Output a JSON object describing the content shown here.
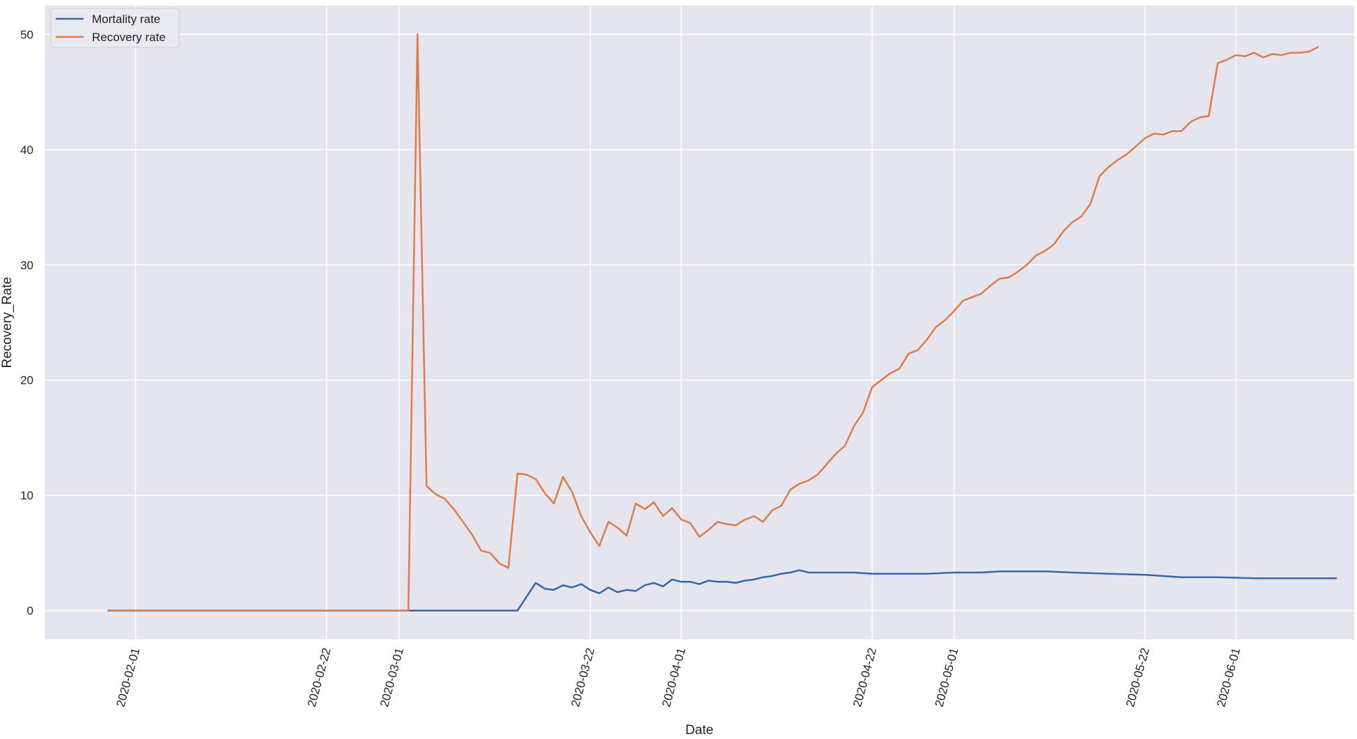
{
  "chart_data": {
    "type": "line",
    "title": "",
    "xlabel": "Date",
    "ylabel": "Recovery_Rate",
    "x_range": [
      "2020-01-22",
      "2020-06-14"
    ],
    "ylim": [
      -2.5,
      52.5
    ],
    "x_ticks": [
      "2020-02-01",
      "2020-02-22",
      "2020-03-01",
      "2020-03-22",
      "2020-04-01",
      "2020-04-22",
      "2020-05-01",
      "2020-05-22",
      "2020-06-01"
    ],
    "y_ticks": [
      0,
      10,
      20,
      30,
      40,
      50
    ],
    "grid": true,
    "legend_position": "top-left",
    "background": "#e5e5ef",
    "series": [
      {
        "name": "Mortality rate",
        "color": "#3467a8",
        "points": [
          [
            "2020-01-29",
            0
          ],
          [
            "2020-02-05",
            0
          ],
          [
            "2020-02-12",
            0
          ],
          [
            "2020-02-19",
            0
          ],
          [
            "2020-02-26",
            0
          ],
          [
            "2020-03-02",
            0
          ],
          [
            "2020-03-05",
            0
          ],
          [
            "2020-03-08",
            0
          ],
          [
            "2020-03-11",
            0
          ],
          [
            "2020-03-14",
            0
          ],
          [
            "2020-03-15",
            1.2
          ],
          [
            "2020-03-16",
            2.4
          ],
          [
            "2020-03-17",
            1.9
          ],
          [
            "2020-03-18",
            1.8
          ],
          [
            "2020-03-19",
            2.2
          ],
          [
            "2020-03-20",
            2.0
          ],
          [
            "2020-03-21",
            2.3
          ],
          [
            "2020-03-22",
            1.8
          ],
          [
            "2020-03-23",
            1.5
          ],
          [
            "2020-03-24",
            2.0
          ],
          [
            "2020-03-25",
            1.6
          ],
          [
            "2020-03-26",
            1.8
          ],
          [
            "2020-03-27",
            1.7
          ],
          [
            "2020-03-28",
            2.2
          ],
          [
            "2020-03-29",
            2.4
          ],
          [
            "2020-03-30",
            2.1
          ],
          [
            "2020-03-31",
            2.7
          ],
          [
            "2020-04-01",
            2.5
          ],
          [
            "2020-04-02",
            2.5
          ],
          [
            "2020-04-03",
            2.3
          ],
          [
            "2020-04-04",
            2.6
          ],
          [
            "2020-04-05",
            2.5
          ],
          [
            "2020-04-06",
            2.5
          ],
          [
            "2020-04-07",
            2.4
          ],
          [
            "2020-04-08",
            2.6
          ],
          [
            "2020-04-09",
            2.7
          ],
          [
            "2020-04-10",
            2.9
          ],
          [
            "2020-04-11",
            3.0
          ],
          [
            "2020-04-12",
            3.2
          ],
          [
            "2020-04-13",
            3.3
          ],
          [
            "2020-04-14",
            3.5
          ],
          [
            "2020-04-15",
            3.3
          ],
          [
            "2020-04-17",
            3.3
          ],
          [
            "2020-04-20",
            3.3
          ],
          [
            "2020-04-22",
            3.2
          ],
          [
            "2020-04-25",
            3.2
          ],
          [
            "2020-04-28",
            3.2
          ],
          [
            "2020-05-01",
            3.3
          ],
          [
            "2020-05-04",
            3.3
          ],
          [
            "2020-05-06",
            3.4
          ],
          [
            "2020-05-08",
            3.4
          ],
          [
            "2020-05-11",
            3.4
          ],
          [
            "2020-05-14",
            3.3
          ],
          [
            "2020-05-18",
            3.2
          ],
          [
            "2020-05-22",
            3.1
          ],
          [
            "2020-05-26",
            2.9
          ],
          [
            "2020-05-30",
            2.9
          ],
          [
            "2020-06-03",
            2.8
          ],
          [
            "2020-06-07",
            2.8
          ],
          [
            "2020-06-12",
            2.8
          ]
        ]
      },
      {
        "name": "Recovery rate",
        "color": "#e07b45",
        "points": [
          [
            "2020-01-29",
            0
          ],
          [
            "2020-02-05",
            0
          ],
          [
            "2020-02-12",
            0
          ],
          [
            "2020-02-19",
            0
          ],
          [
            "2020-02-26",
            0
          ],
          [
            "2020-03-02",
            0
          ],
          [
            "2020-03-03",
            50.0
          ],
          [
            "2020-03-04",
            10.8
          ],
          [
            "2020-03-05",
            10.1
          ],
          [
            "2020-03-06",
            9.7
          ],
          [
            "2020-03-07",
            8.8
          ],
          [
            "2020-03-08",
            7.7
          ],
          [
            "2020-03-09",
            6.6
          ],
          [
            "2020-03-10",
            5.2
          ],
          [
            "2020-03-11",
            5.0
          ],
          [
            "2020-03-12",
            4.1
          ],
          [
            "2020-03-13",
            3.7
          ],
          [
            "2020-03-14",
            11.9
          ],
          [
            "2020-03-15",
            11.8
          ],
          [
            "2020-03-16",
            11.4
          ],
          [
            "2020-03-17",
            10.2
          ],
          [
            "2020-03-18",
            9.3
          ],
          [
            "2020-03-19",
            11.6
          ],
          [
            "2020-03-20",
            10.3
          ],
          [
            "2020-03-21",
            8.2
          ],
          [
            "2020-03-22",
            6.8
          ],
          [
            "2020-03-23",
            5.6
          ],
          [
            "2020-03-24",
            7.7
          ],
          [
            "2020-03-25",
            7.2
          ],
          [
            "2020-03-26",
            6.5
          ],
          [
            "2020-03-27",
            9.3
          ],
          [
            "2020-03-28",
            8.8
          ],
          [
            "2020-03-29",
            9.4
          ],
          [
            "2020-03-30",
            8.2
          ],
          [
            "2020-03-31",
            8.9
          ],
          [
            "2020-04-01",
            7.9
          ],
          [
            "2020-04-02",
            7.6
          ],
          [
            "2020-04-03",
            6.4
          ],
          [
            "2020-04-04",
            7.0
          ],
          [
            "2020-04-05",
            7.7
          ],
          [
            "2020-04-06",
            7.5
          ],
          [
            "2020-04-07",
            7.4
          ],
          [
            "2020-04-08",
            7.9
          ],
          [
            "2020-04-09",
            8.2
          ],
          [
            "2020-04-10",
            7.7
          ],
          [
            "2020-04-11",
            8.7
          ],
          [
            "2020-04-12",
            9.1
          ],
          [
            "2020-04-13",
            10.5
          ],
          [
            "2020-04-14",
            11.0
          ],
          [
            "2020-04-15",
            11.3
          ],
          [
            "2020-04-16",
            11.8
          ],
          [
            "2020-04-17",
            12.7
          ],
          [
            "2020-04-18",
            13.6
          ],
          [
            "2020-04-19",
            14.3
          ],
          [
            "2020-04-20",
            16.0
          ],
          [
            "2020-04-21",
            17.2
          ],
          [
            "2020-04-22",
            19.4
          ],
          [
            "2020-04-23",
            20.0
          ],
          [
            "2020-04-24",
            20.6
          ],
          [
            "2020-04-25",
            21.0
          ],
          [
            "2020-04-26",
            22.3
          ],
          [
            "2020-04-27",
            22.6
          ],
          [
            "2020-04-28",
            23.5
          ],
          [
            "2020-04-29",
            24.6
          ],
          [
            "2020-04-30",
            25.2
          ],
          [
            "2020-05-01",
            26.0
          ],
          [
            "2020-05-02",
            26.9
          ],
          [
            "2020-05-03",
            27.2
          ],
          [
            "2020-05-04",
            27.5
          ],
          [
            "2020-05-05",
            28.2
          ],
          [
            "2020-05-06",
            28.8
          ],
          [
            "2020-05-07",
            28.9
          ],
          [
            "2020-05-08",
            29.4
          ],
          [
            "2020-05-09",
            30.0
          ],
          [
            "2020-05-10",
            30.8
          ],
          [
            "2020-05-11",
            31.2
          ],
          [
            "2020-05-12",
            31.8
          ],
          [
            "2020-05-13",
            32.9
          ],
          [
            "2020-05-14",
            33.7
          ],
          [
            "2020-05-15",
            34.2
          ],
          [
            "2020-05-16",
            35.3
          ],
          [
            "2020-05-17",
            37.7
          ],
          [
            "2020-05-18",
            38.5
          ],
          [
            "2020-05-19",
            39.1
          ],
          [
            "2020-05-20",
            39.6
          ],
          [
            "2020-05-21",
            40.3
          ],
          [
            "2020-05-22",
            41.0
          ],
          [
            "2020-05-23",
            41.4
          ],
          [
            "2020-05-24",
            41.3
          ],
          [
            "2020-05-25",
            41.6
          ],
          [
            "2020-05-26",
            41.6
          ],
          [
            "2020-05-27",
            42.4
          ],
          [
            "2020-05-28",
            42.8
          ],
          [
            "2020-05-29",
            42.9
          ],
          [
            "2020-05-30",
            47.5
          ],
          [
            "2020-05-31",
            47.8
          ],
          [
            "2020-06-01",
            48.2
          ],
          [
            "2020-06-02",
            48.1
          ],
          [
            "2020-06-03",
            48.4
          ],
          [
            "2020-06-04",
            48.0
          ],
          [
            "2020-06-05",
            48.3
          ],
          [
            "2020-06-06",
            48.2
          ],
          [
            "2020-06-07",
            48.4
          ],
          [
            "2020-06-08",
            48.4
          ],
          [
            "2020-06-09",
            48.5
          ],
          [
            "2020-06-10",
            48.9
          ]
        ]
      }
    ]
  }
}
